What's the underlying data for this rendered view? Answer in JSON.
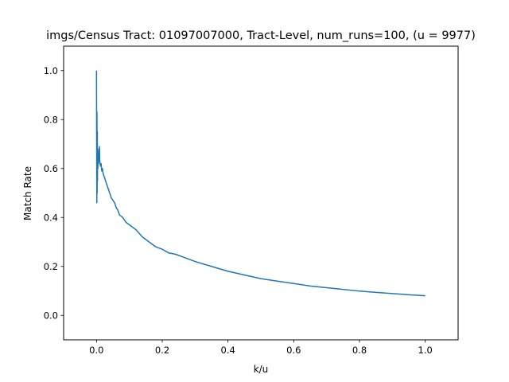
{
  "chart_data": {
    "type": "line",
    "title": "imgs/Census Tract: 01097007000, Tract-Level,  num_runs=100, (u = 9977)",
    "xlabel": "k/u",
    "ylabel": "Match Rate",
    "xlim": [
      -0.1,
      1.1
    ],
    "ylim": [
      -0.1,
      1.1
    ],
    "xticks": [
      0.0,
      0.2,
      0.4,
      0.6,
      0.8,
      1.0
    ],
    "xtick_labels": [
      "0.0",
      "0.2",
      "0.4",
      "0.6",
      "0.8",
      "1.0"
    ],
    "yticks": [
      0.0,
      0.2,
      0.4,
      0.6,
      0.8,
      1.0
    ],
    "ytick_labels": [
      "0.0",
      "0.2",
      "0.4",
      "0.6",
      "0.8",
      "1.0"
    ],
    "grid": false,
    "legend": "none",
    "series": [
      {
        "color": "#1f77b4",
        "x": [
          0.0,
          0.0005,
          0.001,
          0.0015,
          0.002,
          0.0025,
          0.003,
          0.0035,
          0.004,
          0.005,
          0.006,
          0.007,
          0.008,
          0.009,
          0.01,
          0.012,
          0.014,
          0.016,
          0.018,
          0.02,
          0.025,
          0.03,
          0.035,
          0.04,
          0.045,
          0.05,
          0.055,
          0.06,
          0.065,
          0.07,
          0.08,
          0.09,
          0.1,
          0.11,
          0.12,
          0.14,
          0.16,
          0.18,
          0.2,
          0.22,
          0.24,
          0.26,
          0.3,
          0.35,
          0.4,
          0.45,
          0.5,
          0.55,
          0.6,
          0.65,
          0.7,
          0.75,
          0.8,
          0.85,
          0.9,
          0.95,
          1.0
        ],
        "y": [
          1.0,
          0.7,
          0.46,
          0.83,
          0.5,
          0.75,
          0.55,
          0.67,
          0.6,
          0.66,
          0.62,
          0.68,
          0.64,
          0.69,
          0.63,
          0.61,
          0.62,
          0.59,
          0.6,
          0.58,
          0.56,
          0.54,
          0.52,
          0.5,
          0.48,
          0.47,
          0.46,
          0.44,
          0.43,
          0.41,
          0.4,
          0.38,
          0.37,
          0.36,
          0.35,
          0.32,
          0.3,
          0.28,
          0.27,
          0.255,
          0.25,
          0.24,
          0.22,
          0.2,
          0.18,
          0.165,
          0.15,
          0.14,
          0.13,
          0.12,
          0.113,
          0.106,
          0.099,
          0.094,
          0.089,
          0.084,
          0.08
        ]
      }
    ]
  }
}
